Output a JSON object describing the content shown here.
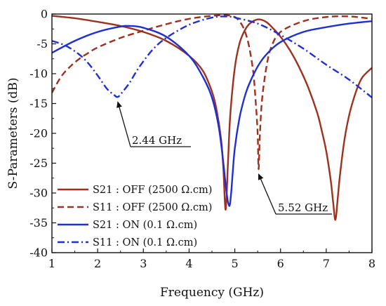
{
  "chart_data": {
    "type": "line",
    "xlabel": "Frequency (GHz)",
    "ylabel": "S-Parameters (dB)",
    "xlim": [
      1,
      8
    ],
    "ylim": [
      -40,
      0
    ],
    "xticks": [
      1,
      2,
      3,
      4,
      5,
      6,
      7,
      8
    ],
    "yticks": [
      0,
      -5,
      -10,
      -15,
      -20,
      -25,
      -30,
      -35,
      -40
    ],
    "grid": false,
    "legend_position": "bottom-left",
    "series": [
      {
        "name": "S21 : OFF (2500 Ω.cm)",
        "color": "#a0301e",
        "dash": "solid",
        "x": [
          1.0,
          1.5,
          2.0,
          2.5,
          3.0,
          3.5,
          4.0,
          4.3,
          4.5,
          4.6,
          4.7,
          4.75,
          4.8,
          4.85,
          4.9,
          5.0,
          5.1,
          5.2,
          5.3,
          5.4,
          5.5,
          5.6,
          5.7,
          5.8,
          6.0,
          6.2,
          6.4,
          6.6,
          6.8,
          6.9,
          7.0,
          7.1,
          7.15,
          7.2,
          7.25,
          7.3,
          7.4,
          7.5,
          7.6,
          7.7,
          7.8,
          8.0
        ],
        "values": [
          -0.3,
          -0.7,
          -1.3,
          -2.0,
          -3.0,
          -4.5,
          -7.0,
          -9.5,
          -13.0,
          -16.0,
          -21.0,
          -26.0,
          -32.8,
          -25.0,
          -17.0,
          -9.0,
          -5.0,
          -3.0,
          -1.8,
          -1.2,
          -0.9,
          -1.0,
          -1.4,
          -2.1,
          -3.8,
          -6.0,
          -8.8,
          -12.2,
          -16.5,
          -19.5,
          -23.0,
          -28.0,
          -31.5,
          -34.5,
          -31.0,
          -27.0,
          -21.0,
          -17.0,
          -14.2,
          -12.0,
          -10.5,
          -9.0
        ]
      },
      {
        "name": "S11 : OFF (2500 Ω.cm)",
        "color": "#a0301e",
        "dash": "dashed",
        "x": [
          1.0,
          1.2,
          1.4,
          1.6,
          1.8,
          2.0,
          2.5,
          3.0,
          3.5,
          4.0,
          4.5,
          4.8,
          5.0,
          5.1,
          5.2,
          5.3,
          5.4,
          5.45,
          5.5,
          5.52,
          5.55,
          5.6,
          5.7,
          5.8,
          6.0,
          6.5,
          7.0,
          7.5,
          8.0
        ],
        "values": [
          -13.2,
          -10.5,
          -8.8,
          -7.5,
          -6.5,
          -5.6,
          -4.0,
          -2.8,
          -1.7,
          -0.8,
          -0.3,
          -0.2,
          -0.5,
          -1.2,
          -2.5,
          -5.0,
          -9.5,
          -14.0,
          -20.0,
          -26.0,
          -20.0,
          -14.0,
          -8.5,
          -5.5,
          -3.0,
          -1.2,
          -0.5,
          -0.4,
          -0.8
        ]
      },
      {
        "name": "S21 : ON (0.1 Ω.cm)",
        "color": "#1f2fd6",
        "dash": "solid",
        "x": [
          1.0,
          1.5,
          2.0,
          2.5,
          2.7,
          3.0,
          3.5,
          4.0,
          4.3,
          4.5,
          4.65,
          4.75,
          4.82,
          4.88,
          4.92,
          4.95,
          5.0,
          5.1,
          5.2,
          5.3,
          5.5,
          5.7,
          6.0,
          6.5,
          7.0,
          7.5,
          8.0
        ],
        "values": [
          -6.5,
          -4.5,
          -3.0,
          -2.1,
          -2.0,
          -2.3,
          -3.8,
          -7.0,
          -10.5,
          -14.0,
          -19.0,
          -25.0,
          -30.0,
          -32.2,
          -30.0,
          -27.0,
          -22.5,
          -17.5,
          -14.3,
          -12.0,
          -8.8,
          -6.7,
          -4.7,
          -3.0,
          -2.2,
          -1.6,
          -1.2
        ]
      },
      {
        "name": "S11 : ON (0.1 Ω.cm)",
        "color": "#1f2fd6",
        "dash": "dashdot",
        "x": [
          1.0,
          1.3,
          1.6,
          1.8,
          2.0,
          2.2,
          2.35,
          2.44,
          2.55,
          2.7,
          2.9,
          3.2,
          3.5,
          4.0,
          4.5,
          4.8,
          5.0,
          5.5,
          6.0,
          6.5,
          7.0,
          7.5,
          8.0
        ],
        "values": [
          -4.5,
          -5.3,
          -6.8,
          -8.3,
          -10.3,
          -12.5,
          -13.5,
          -13.9,
          -13.0,
          -11.5,
          -9.0,
          -6.0,
          -4.0,
          -1.8,
          -0.6,
          -0.4,
          -0.6,
          -1.6,
          -3.5,
          -5.8,
          -8.5,
          -11.0,
          -14.0
        ]
      }
    ],
    "annotations": [
      {
        "text": "2.44 GHz",
        "x": 2.44,
        "y": -13.9
      },
      {
        "text": "5.52 GHz",
        "x": 5.52,
        "y": -26.0
      }
    ]
  }
}
